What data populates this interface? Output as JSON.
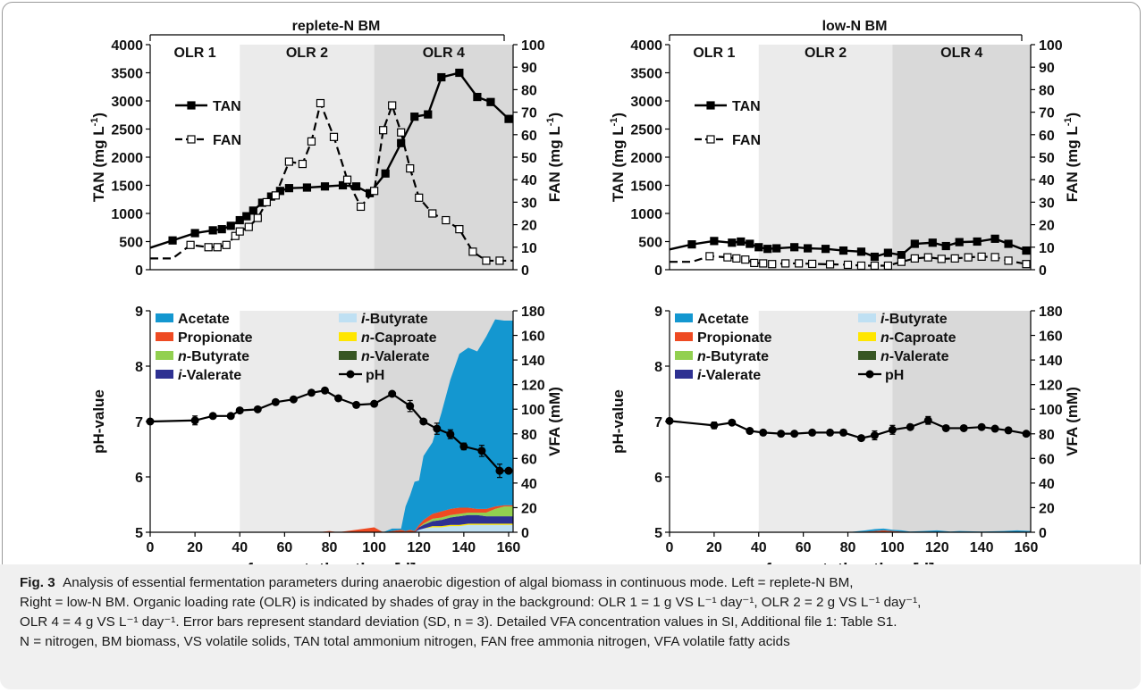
{
  "colors": {
    "olr1": "#ffffff",
    "olr2": "#ebebeb",
    "olr4": "#d9d9d9",
    "acetate": "#1497d0",
    "propionate": "#ee4a22",
    "n_butyrate": "#92d050",
    "i_valerate": "#2e3192",
    "i_butyrate": "#bfe0f3",
    "n_caproate": "#ffe600",
    "n_valerate": "#375623",
    "line": "#000000"
  },
  "caption": {
    "label": "Fig. 3",
    "line1": "Analysis of essential fermentation parameters during anaerobic digestion of algal biomass in continuous mode. Left = replete-N BM,",
    "line2": "Right = low-N BM. Organic loading rate (OLR) is indicated by shades of gray in the background: OLR 1 = 1 g VS L⁻¹ day⁻¹, OLR 2 = 2 g VS L⁻¹ day⁻¹,",
    "line3": "OLR 4 = 4 g VS L⁻¹ day⁻¹. Error bars represent standard deviation (SD, n = 3). Detailed VFA concentration values in SI, Additional file 1: Table S1.",
    "line4": "N = nitrogen, BM biomass, VS volatile solids, TAN total ammonium nitrogen, FAN free ammonia nitrogen, VFA volatile fatty acids"
  },
  "chart_data": [
    {
      "panel": "top-left",
      "type": "line",
      "title": "replete-N BM",
      "phases": [
        {
          "label": "OLR 1",
          "x_start": 0,
          "x_end": 40
        },
        {
          "label": "OLR 2",
          "x_start": 40,
          "x_end": 100
        },
        {
          "label": "OLR 4",
          "x_start": 100,
          "x_end": 162
        }
      ],
      "xlim": [
        0,
        162
      ],
      "ylim_left": [
        0,
        4000
      ],
      "ylabel_left": "TAN (mg L-1)",
      "yticks_left": [
        0,
        500,
        1000,
        1500,
        2000,
        2500,
        3000,
        3500,
        4000
      ],
      "ylim_right": [
        0,
        100
      ],
      "ylabel_right": "FAN (mg L-1)",
      "yticks_right": [
        0,
        10,
        20,
        30,
        40,
        50,
        60,
        70,
        80,
        90,
        100
      ],
      "legend": {
        "tan": "TAN",
        "fan": "FAN"
      },
      "series": [
        {
          "name": "TAN",
          "axis": "left",
          "x": [
            0,
            10,
            20,
            28,
            32,
            36,
            40,
            43,
            46,
            50,
            54,
            58,
            62,
            70,
            78,
            86,
            92,
            98,
            105,
            112,
            118,
            124,
            130,
            138,
            146,
            152,
            160
          ],
          "y": [
            390,
            520,
            650,
            700,
            720,
            780,
            880,
            950,
            1050,
            1190,
            1300,
            1400,
            1450,
            1460,
            1480,
            1500,
            1480,
            1360,
            1710,
            2250,
            2720,
            2760,
            3420,
            3500,
            3070,
            2980,
            2680
          ]
        },
        {
          "name": "FAN",
          "axis": "right",
          "x": [
            0,
            10,
            18,
            26,
            30,
            34,
            38,
            40,
            44,
            48,
            52,
            56,
            62,
            68,
            72,
            76,
            82,
            88,
            94,
            100,
            104,
            108,
            112,
            116,
            120,
            126,
            132,
            138,
            144,
            150,
            156,
            162
          ],
          "y": [
            5,
            5,
            11,
            10,
            10,
            11,
            15,
            17,
            19,
            23,
            30,
            33,
            48,
            47,
            57,
            74,
            59,
            40,
            28,
            35,
            62,
            73,
            61,
            45,
            32,
            25,
            22,
            18,
            8,
            4,
            4,
            4
          ]
        }
      ]
    },
    {
      "panel": "top-right",
      "type": "line",
      "title": "low-N BM",
      "phases": [
        {
          "label": "OLR 1",
          "x_start": 0,
          "x_end": 40
        },
        {
          "label": "OLR 2",
          "x_start": 40,
          "x_end": 100
        },
        {
          "label": "OLR 4",
          "x_start": 100,
          "x_end": 162
        }
      ],
      "xlim": [
        0,
        162
      ],
      "ylim_left": [
        0,
        4000
      ],
      "ylabel_left": "TAN (mg L-1)",
      "yticks_left": [
        0,
        500,
        1000,
        1500,
        2000,
        2500,
        3000,
        3500,
        4000
      ],
      "ylim_right": [
        0,
        100
      ],
      "ylabel_right": "FAN (mg L-1)",
      "yticks_right": [
        0,
        10,
        20,
        30,
        40,
        50,
        60,
        70,
        80,
        90,
        100
      ],
      "legend": {
        "tan": "TAN",
        "fan": "FAN"
      },
      "series": [
        {
          "name": "TAN",
          "axis": "left",
          "x": [
            0,
            10,
            20,
            28,
            32,
            36,
            40,
            44,
            48,
            56,
            62,
            70,
            78,
            86,
            92,
            98,
            104,
            110,
            118,
            124,
            130,
            138,
            146,
            152,
            160
          ],
          "y": [
            360,
            450,
            510,
            480,
            500,
            460,
            400,
            370,
            380,
            400,
            380,
            370,
            340,
            320,
            230,
            300,
            260,
            460,
            480,
            420,
            490,
            500,
            550,
            460,
            340
          ]
        },
        {
          "name": "FAN",
          "axis": "right",
          "x": [
            0,
            10,
            18,
            26,
            30,
            34,
            38,
            42,
            46,
            52,
            58,
            64,
            72,
            80,
            86,
            92,
            98,
            104,
            110,
            116,
            122,
            128,
            134,
            140,
            146,
            152,
            160
          ],
          "y": [
            3.5,
            3.5,
            6,
            5.5,
            5,
            4.5,
            3,
            2.8,
            2.5,
            2.8,
            2.8,
            2.6,
            2.4,
            2.2,
            1.8,
            1.8,
            1.8,
            3.5,
            5,
            5.5,
            4.8,
            5,
            5.5,
            5.8,
            5.6,
            4,
            2.5
          ]
        }
      ]
    },
    {
      "panel": "bottom-left",
      "type": "area",
      "xlim": [
        0,
        162
      ],
      "xlabel": "fermentation time [d]",
      "xticks": [
        0,
        20,
        40,
        60,
        80,
        100,
        120,
        140,
        160
      ],
      "ylim_left": [
        5,
        9
      ],
      "ylabel_left": "pH-value",
      "yticks_left": [
        5,
        6,
        7,
        8,
        9
      ],
      "ylim_right": [
        0,
        180
      ],
      "ylabel_right": "VFA (mM)",
      "yticks_right": [
        0,
        20,
        40,
        60,
        80,
        100,
        120,
        140,
        160,
        180
      ],
      "legend": [
        "Acetate",
        "Propionate",
        "n-Butyrate",
        "i-Valerate",
        "i-Butyrate",
        "n-Caproate",
        "n-Valerate",
        "pH"
      ],
      "x": [
        0,
        40,
        75,
        80,
        84,
        92,
        100,
        104,
        108,
        112,
        114,
        116,
        118,
        120,
        122,
        126,
        130,
        134,
        138,
        142,
        146,
        150,
        154,
        158,
        162
      ],
      "vfa_series": [
        {
          "name": "i-Butyrate",
          "color_key": "i_butyrate",
          "values": [
            0,
            0,
            0,
            0,
            0,
            0,
            0,
            0,
            0,
            0,
            0,
            0,
            0,
            2,
            3,
            4,
            4,
            5,
            5,
            6,
            6,
            6,
            6,
            6,
            6
          ]
        },
        {
          "name": "n-Caproate",
          "color_key": "n_caproate",
          "values": [
            0,
            0,
            0,
            0,
            0,
            0,
            0,
            0,
            0,
            0,
            0,
            0,
            0,
            0,
            0,
            1,
            1,
            1,
            1,
            1,
            1,
            1,
            1,
            1,
            1
          ]
        },
        {
          "name": "n-Valerate",
          "color_key": "n_valerate",
          "values": [
            0,
            0,
            0,
            0,
            0,
            0,
            0,
            0,
            0,
            0,
            0,
            0,
            0,
            0,
            0,
            0,
            0,
            0,
            0,
            0,
            0,
            0,
            0,
            0,
            0
          ]
        },
        {
          "name": "i-Valerate",
          "color_key": "i_valerate",
          "values": [
            0,
            0,
            0,
            0,
            0,
            0,
            0,
            0,
            0,
            0,
            0,
            0,
            0,
            2,
            3,
            4,
            5,
            6,
            7,
            7,
            7,
            6,
            6,
            6,
            6
          ]
        },
        {
          "name": "n-Butyrate",
          "color_key": "n_butyrate",
          "values": [
            0,
            0,
            0,
            0,
            0,
            0,
            0,
            0,
            0,
            0,
            0,
            0,
            0,
            0,
            1,
            2,
            2,
            2,
            2,
            2,
            2,
            3,
            6,
            8,
            8
          ]
        },
        {
          "name": "Propionate",
          "color_key": "propionate",
          "values": [
            0,
            0,
            0,
            1,
            0,
            2,
            4,
            0,
            1,
            2,
            1,
            2,
            1,
            2,
            3,
            4,
            5,
            5,
            5,
            4,
            3,
            3,
            2,
            1,
            1
          ]
        },
        {
          "name": "Acetate",
          "color_key": "acetate",
          "values": [
            0,
            0,
            0,
            0,
            0,
            0,
            0,
            0,
            2,
            1,
            20,
            28,
            40,
            36,
            52,
            58,
            80,
            105,
            125,
            130,
            128,
            140,
            152,
            150,
            150
          ]
        }
      ],
      "ph": {
        "x": [
          0,
          20,
          28,
          36,
          40,
          48,
          56,
          64,
          72,
          78,
          84,
          92,
          100,
          108,
          116,
          122,
          128,
          134,
          140,
          148,
          156,
          160
        ],
        "y": [
          7.0,
          7.02,
          7.1,
          7.1,
          7.2,
          7.22,
          7.35,
          7.4,
          7.52,
          7.56,
          7.42,
          7.3,
          7.32,
          7.5,
          7.28,
          7.0,
          6.87,
          6.77,
          6.55,
          6.47,
          6.11,
          6.11
        ],
        "err": [
          0,
          0.08,
          0,
          0,
          0,
          0,
          0,
          0,
          0,
          0,
          0,
          0,
          0,
          0,
          0.1,
          0,
          0.1,
          0.08,
          0.06,
          0.1,
          0.12,
          0
        ]
      }
    },
    {
      "panel": "bottom-right",
      "type": "area",
      "xlim": [
        0,
        162
      ],
      "xlabel": "fermentation time [d]",
      "xticks": [
        0,
        20,
        40,
        60,
        80,
        100,
        120,
        140,
        160
      ],
      "ylim_left": [
        5,
        9
      ],
      "ylabel_left": "pH-value",
      "yticks_left": [
        5,
        6,
        7,
        8,
        9
      ],
      "ylim_right": [
        0,
        180
      ],
      "ylabel_right": "VFA (mM)",
      "yticks_right": [
        0,
        20,
        40,
        60,
        80,
        100,
        120,
        140,
        160,
        180
      ],
      "legend": [
        "Acetate",
        "Propionate",
        "n-Butyrate",
        "i-Valerate",
        "i-Butyrate",
        "n-Caproate",
        "n-Valerate",
        "pH"
      ],
      "x": [
        0,
        80,
        88,
        92,
        96,
        100,
        104,
        108,
        114,
        120,
        126,
        130,
        140,
        150,
        156,
        162
      ],
      "vfa_series": [
        {
          "name": "Propionate",
          "color_key": "propionate",
          "values": [
            0,
            0,
            0.5,
            1,
            1.5,
            1,
            0.5,
            0,
            0,
            0,
            0,
            0,
            0,
            0,
            0,
            0
          ]
        },
        {
          "name": "Acetate",
          "color_key": "acetate",
          "values": [
            0,
            0,
            1,
            1.5,
            1.5,
            1,
            1,
            0.5,
            1,
            1.5,
            0.5,
            1,
            0.5,
            1,
            1.5,
            1
          ]
        }
      ],
      "ph": {
        "x": [
          0,
          20,
          28,
          36,
          42,
          50,
          56,
          64,
          72,
          78,
          86,
          92,
          100,
          108,
          116,
          124,
          132,
          140,
          146,
          152,
          160
        ],
        "y": [
          7.01,
          6.93,
          6.98,
          6.83,
          6.8,
          6.78,
          6.78,
          6.8,
          6.8,
          6.8,
          6.7,
          6.75,
          6.85,
          6.9,
          7.02,
          6.88,
          6.88,
          6.9,
          6.87,
          6.84,
          6.78
        ],
        "err": [
          0,
          0.06,
          0,
          0,
          0,
          0,
          0,
          0,
          0,
          0.05,
          0,
          0.08,
          0.08,
          0,
          0.07,
          0,
          0,
          0,
          0,
          0,
          0
        ]
      }
    }
  ]
}
